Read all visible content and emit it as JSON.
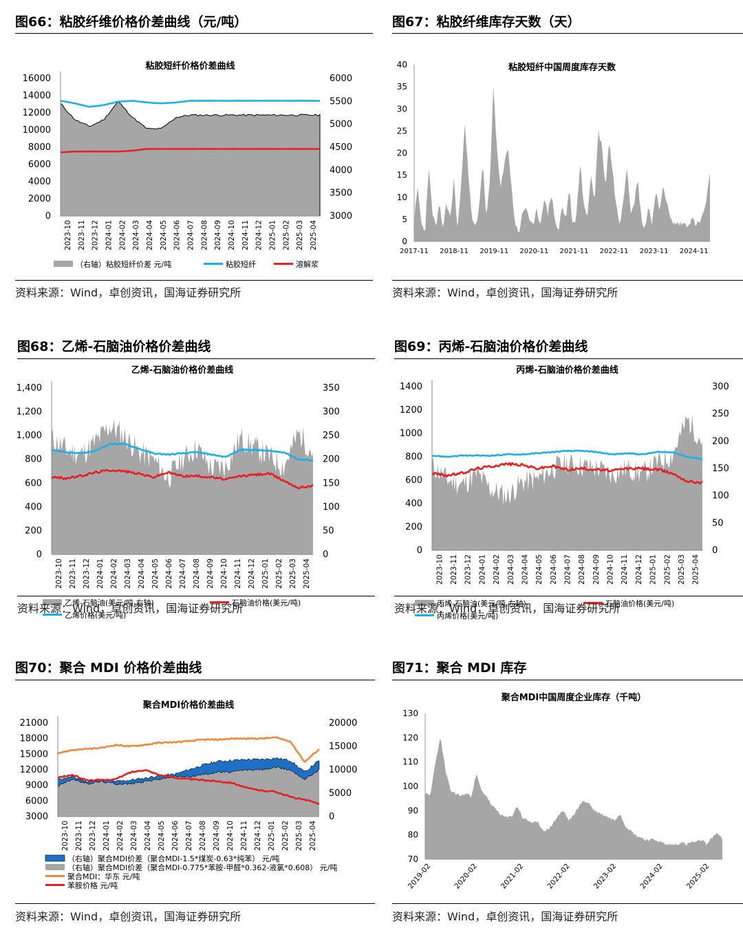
{
  "figures": [
    {
      "id": "fig66",
      "title": "图66：粘胶纤维价格价差曲线（元/吨）",
      "source": "资料来源：Wind，卓创资讯，国海证券研究所",
      "chart_data": {
        "type": "area",
        "title": "粘胶短纤价格价差曲线",
        "x": [
          "2023-10",
          "2023-11",
          "2023-12",
          "2024-01",
          "2024-02",
          "2024-03",
          "2024-04",
          "2024-05",
          "2024-06",
          "2024-07",
          "2024-08",
          "2024-09",
          "2024-10",
          "2024-11",
          "2024-12",
          "2025-01",
          "2025-02",
          "2025-03",
          "2025-04"
        ],
        "yticks": [
          "16000",
          "14000",
          "12000",
          "10000",
          "8000",
          "6000",
          "4000",
          "2000",
          "0"
        ],
        "ylim": [
          0,
          16000
        ],
        "y2ticks": [
          "6000",
          "5500",
          "5000",
          "4500",
          "4000",
          "3500",
          "3000"
        ],
        "y2lim": [
          3000,
          6000
        ],
        "series": [
          {
            "name": "（右轴）粘胶短纤价差 元/吨",
            "axis": "right",
            "kind": "area",
            "color": "#a6a6a6",
            "values": [
              5450,
              5100,
              4950,
              5100,
              5500,
              5150,
              4900,
              4900,
              5150,
              5200,
              5200,
              5200,
              5200,
              5200,
              5200,
              5200,
              5200,
              5200,
              5200
            ]
          },
          {
            "name": "粘胶短纤",
            "axis": "left",
            "kind": "line",
            "color": "#1ab0ea",
            "values": [
              13400,
              13100,
              12700,
              12900,
              13300,
              13400,
              13200,
              13100,
              13200,
              13400,
              13400,
              13400,
              13400,
              13400,
              13400,
              13400,
              13400,
              13400,
              13400
            ]
          },
          {
            "name": "溶解浆",
            "axis": "left",
            "kind": "line",
            "color": "#e52121",
            "values": [
              7400,
              7500,
              7500,
              7500,
              7500,
              7600,
              7800,
              7800,
              7800,
              7800,
              7800,
              7800,
              7800,
              7800,
              7800,
              7800,
              7800,
              7800,
              7800
            ]
          }
        ],
        "legend_placement": "bottom",
        "grid": false
      }
    },
    {
      "id": "fig67",
      "title": "图67：粘胶纤维库存天数（天）",
      "source": "资料来源：Wind，卓创资讯，国海证券研究所",
      "chart_data": {
        "type": "area",
        "title": "粘胶短纤中国周度库存天数",
        "xticks": [
          "2017-11",
          "2018-11",
          "2019-11",
          "2020-11",
          "2021-11",
          "2022-11",
          "2023-11",
          "2024-11"
        ],
        "yticks": [
          "40",
          "35",
          "30",
          "25",
          "20",
          "15",
          "10",
          "5",
          "0"
        ],
        "ylim": [
          0,
          40
        ],
        "series": [
          {
            "name": "粘胶短纤中国周度库存天数",
            "kind": "area",
            "color": "#a6a6a6",
            "x_start": 2017.83,
            "x_end": 2025.4,
            "values": [
              5,
              12,
              4,
              2,
              17,
              7,
              3,
              8,
              3,
              9,
              5,
              14,
              3,
              12,
              28,
              15,
              5,
              3,
              8,
              18,
              5,
              13,
              36,
              20,
              12,
              17,
              22,
              12,
              4,
              2,
              6,
              8,
              5,
              3,
              7,
              4,
              10,
              6,
              11,
              5,
              2,
              8,
              5,
              12,
              3,
              6,
              18,
              8,
              6,
              15,
              9,
              25,
              22,
              12,
              23,
              16,
              8,
              4,
              10,
              17,
              7,
              9,
              14,
              5,
              3,
              8,
              4,
              12,
              6,
              13,
              9,
              5,
              4,
              4,
              4,
              4,
              4,
              5,
              4,
              4,
              6,
              9,
              15
            ]
          }
        ],
        "grid": false
      }
    },
    {
      "id": "fig68",
      "title": "图68：乙烯-石脑油价格价差曲线",
      "source": "资料来源：Wind，卓创资讯，国海证券研究所",
      "chart_data": {
        "type": "area",
        "title": "乙烯-石脑油价格价差曲线",
        "x": [
          "2023-10",
          "2023-11",
          "2023-12",
          "2024-01",
          "2024-02",
          "2024-03",
          "2024-04",
          "2024-05",
          "2024-06",
          "2024-07",
          "2024-08",
          "2024-09",
          "2024-10",
          "2024-11",
          "2024-12",
          "2025-01",
          "2025-02",
          "2025-03",
          "2025-04"
        ],
        "yticks": [
          "1,400",
          "1,200",
          "1,000",
          "800",
          "600",
          "400",
          "200",
          "0"
        ],
        "ylim": [
          0,
          1400
        ],
        "y2ticks": [
          "350",
          "300",
          "250",
          "200",
          "150",
          "100",
          "50",
          "0"
        ],
        "y2lim": [
          0,
          350
        ],
        "series": [
          {
            "name": "乙烯-石脑油(美元/吨,右轴)",
            "axis": "right",
            "kind": "area",
            "color": "#a6a6a6",
            "values": [
              245,
              220,
              210,
              235,
              270,
              250,
              215,
              200,
              160,
              200,
              225,
              180,
              185,
              245,
              225,
              205,
              185,
              255,
              215
            ]
          },
          {
            "name": "石脑油价格(美元/吨)",
            "axis": "left",
            "kind": "line",
            "color": "#e52121",
            "values": [
              650,
              640,
              660,
              690,
              710,
              700,
              680,
              650,
              690,
              660,
              660,
              650,
              630,
              660,
              670,
              680,
              620,
              560,
              580
            ]
          },
          {
            "name": "乙烯价格(美元/吨)",
            "axis": "left",
            "kind": "line",
            "color": "#1ab0ea",
            "values": [
              880,
              860,
              850,
              870,
              930,
              930,
              890,
              850,
              840,
              850,
              860,
              840,
              820,
              880,
              880,
              870,
              860,
              800,
              790
            ]
          }
        ],
        "legend_placement": "bottom",
        "grid": false
      }
    },
    {
      "id": "fig69",
      "title": "图69：丙烯-石脑油价格价差曲线",
      "source": "资料来源：Wind，卓创资讯，国海证券研究所",
      "chart_data": {
        "type": "area",
        "title": "丙烯-石脑油价格价差曲线",
        "x": [
          "2023-10",
          "2023-11",
          "2023-12",
          "2024-01",
          "2024-02",
          "2024-03",
          "2024-04",
          "2024-05",
          "2024-06",
          "2024-07",
          "2024-08",
          "2024-09",
          "2024-10",
          "2024-11",
          "2024-12",
          "2025-01",
          "2025-02",
          "2025-03",
          "2025-04"
        ],
        "yticks": [
          "1400",
          "1200",
          "1000",
          "800",
          "600",
          "400",
          "200",
          "0"
        ],
        "ylim": [
          0,
          1400
        ],
        "y2ticks": [
          "300",
          "250",
          "200",
          "150",
          "100",
          "50",
          "0"
        ],
        "y2lim": [
          0,
          300
        ],
        "series": [
          {
            "name": "丙烯-石脑油(美元/吨,右轴)",
            "axis": "right",
            "kind": "area",
            "color": "#a6a6a6",
            "values": [
              155,
              130,
              120,
              140,
              110,
              100,
              125,
              130,
              150,
              160,
              155,
              150,
              140,
              150,
              140,
              160,
              175,
              240,
              200
            ]
          },
          {
            "name": "石脑油价格(美元/吨)",
            "axis": "left",
            "kind": "line",
            "color": "#e52121",
            "values": [
              660,
              640,
              660,
              700,
              720,
              740,
              730,
              700,
              720,
              690,
              700,
              690,
              680,
              700,
              700,
              690,
              660,
              590,
              580
            ]
          },
          {
            "name": "丙烯价格(美元/吨)",
            "axis": "left",
            "kind": "line",
            "color": "#1ab0ea",
            "values": [
              810,
              800,
              810,
              810,
              810,
              820,
              820,
              830,
              840,
              850,
              850,
              840,
              820,
              830,
              820,
              840,
              840,
              800,
              780
            ]
          }
        ],
        "legend_placement": "bottom",
        "grid": false
      }
    },
    {
      "id": "fig70",
      "title": "图70：聚合 MDI 价格价差曲线",
      "source": "资料来源：Wind，卓创资讯，国海证券研究所",
      "chart_data": {
        "type": "area",
        "title": "聚合MDI价格价差曲线",
        "x": [
          "2023-10",
          "2023-11",
          "2023-12",
          "2024-01",
          "2024-02",
          "2024-03",
          "2024-04",
          "2024-05",
          "2024-06",
          "2024-07",
          "2024-08",
          "2024-09",
          "2024-10",
          "2024-11",
          "2024-12",
          "2025-01",
          "2025-02",
          "2025-03",
          "2025-04"
        ],
        "yticks": [
          "21000",
          "18000",
          "15000",
          "12000",
          "9000",
          "6000",
          "3000"
        ],
        "ylim": [
          3000,
          21000
        ],
        "y2ticks": [
          "20000",
          "15000",
          "10000",
          "5000",
          "0"
        ],
        "y2lim": [
          0,
          20000
        ],
        "series": [
          {
            "name": "（右轴）聚合MDI价差（聚合MDI-1.5*煤炭-0.63*纯苯） 元/吨",
            "axis": "right",
            "kind": "area",
            "color": "#1f6fc4",
            "values": [
              8000,
              8500,
              7500,
              7800,
              7500,
              7800,
              8200,
              8800,
              9000,
              10000,
              11000,
              11800,
              12000,
              12200,
              12200,
              12500,
              12000,
              9500,
              12000
            ]
          },
          {
            "name": "（右轴）聚合MDI价差（聚合MDI-0.775*苯胺-甲醛*0.362-液氯*0.608） 元/吨",
            "axis": "right",
            "kind": "area",
            "color": "#a6a6a6",
            "values": [
              6500,
              8000,
              7000,
              7500,
              7000,
              7000,
              7500,
              8000,
              8500,
              8500,
              9000,
              9500,
              9500,
              10000,
              10000,
              10500,
              10000,
              8000,
              10000
            ]
          },
          {
            "name": "聚合MDI：华东 元/吨",
            "axis": "left",
            "kind": "line",
            "color": "#ed8a3c",
            "values": [
              15200,
              15800,
              16000,
              16200,
              16800,
              16500,
              16800,
              17200,
              17300,
              17500,
              17800,
              17800,
              18000,
              18000,
              18000,
              18200,
              17500,
              13500,
              16000
            ]
          },
          {
            "name": "苯胺价格 元/吨",
            "axis": "left",
            "kind": "line",
            "color": "#e52121",
            "values": [
              10500,
              11000,
              10000,
              10000,
              10200,
              11500,
              12000,
              11000,
              10500,
              10200,
              10000,
              9800,
              9500,
              8500,
              8000,
              7800,
              6800,
              6200,
              5500
            ]
          }
        ],
        "legend_placement": "bottom",
        "grid": false
      }
    },
    {
      "id": "fig71",
      "title": "图71：聚合 MDI 库存",
      "source": "资料来源：Wind，卓创资讯，国海证券研究所",
      "chart_data": {
        "type": "area",
        "title": "聚合MDI中国周度企业库存（千吨）",
        "xticks": [
          "2019-02",
          "2020-02",
          "2021-02",
          "2022-02",
          "2023-02",
          "2024-02",
          "2025-02"
        ],
        "yticks": [
          "130",
          "120",
          "110",
          "100",
          "90",
          "80",
          "70"
        ],
        "ylim": [
          70,
          130
        ],
        "series": [
          {
            "name": "聚合MDI中国周度企业库存",
            "kind": "area",
            "color": "#a6a6a6",
            "x_start": 2019.0,
            "x_end": 2025.33,
            "values": [
              97,
              96,
              110,
              120,
              106,
              98,
              97,
              96,
              97,
              96,
              105,
              98,
              96,
              92,
              90,
              88,
              87,
              88,
              92,
              87,
              86,
              85,
              85,
              82,
              82,
              85,
              88,
              90,
              86,
              88,
              92,
              94,
              93,
              90,
              89,
              88,
              87,
              86,
              89,
              84,
              82,
              80,
              79,
              78,
              78,
              78,
              77,
              76,
              76,
              76,
              77,
              76,
              77,
              77,
              78,
              76,
              79,
              81,
              78
            ]
          }
        ],
        "grid": false
      }
    }
  ]
}
